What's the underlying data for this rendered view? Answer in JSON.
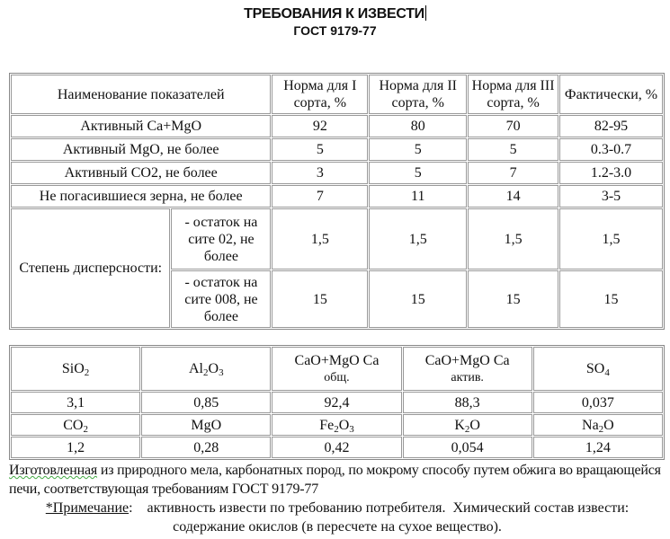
{
  "title": "ТРЕБОВАНИЯ К ИЗВЕСТИ",
  "subtitle": "ГОСТ 9179-77",
  "table1": {
    "headers": [
      "Наименование показателей",
      "Норма для I сорта, %",
      "Норма для II сорта, %",
      "Норма для III сорта, %",
      "Фактически, %"
    ],
    "rows": [
      [
        "Активный Ca+MgO",
        "92",
        "80",
        "70",
        "82-95"
      ],
      [
        "Активный MgO, не более",
        "5",
        "5",
        "5",
        "0.3-0.7"
      ],
      [
        "Активный CO2, не более",
        "3",
        "5",
        "7",
        "1.2-3.0"
      ],
      [
        "Не погасившиеся зерна, не более",
        "7",
        "11",
        "14",
        "3-5"
      ]
    ],
    "dispersion": {
      "label": "Степень дисперсности:",
      "rows": [
        [
          "- остаток на сите 02, не более",
          "1,5",
          "1,5",
          "1,5",
          "1,5"
        ],
        [
          "- остаток на сите 008, не более",
          "15",
          "15",
          "15",
          "15"
        ]
      ]
    }
  },
  "table2": {
    "row1_headers": [
      [
        "Si",
        "O",
        "2"
      ],
      [
        "Al",
        "2",
        "O",
        "3"
      ],
      [
        "CaO+MgO Ca",
        "общ."
      ],
      [
        "CaO+MgO Ca",
        "актив."
      ],
      [
        "S",
        "O",
        "4"
      ]
    ],
    "row1_values": [
      "3,1",
      "0,85",
      "92,4",
      "88,3",
      "0,037"
    ],
    "row2_headers": [
      [
        "C",
        "O",
        "2"
      ],
      [
        "MgO"
      ],
      [
        "Fe",
        "2",
        "O",
        "3"
      ],
      [
        "K",
        "2",
        "O"
      ],
      [
        "Na",
        "2",
        "O"
      ]
    ],
    "row2_values": [
      "1,2",
      "0,28",
      "0,42",
      "0,054",
      "1,24"
    ]
  },
  "footer": {
    "word1": "Изготовленная",
    "line1": " из природного мела, карбонатных пород, по мокрому способу путем обжига во вращающейся печи, соответствующая требованиям ГОСТ 9179-77",
    "note_label": "*Примечание",
    "note_text": ":    активность извести по требованию потребителя.  Химический состав извести: содержание окислов (в пересчете на сухое вещество)."
  }
}
